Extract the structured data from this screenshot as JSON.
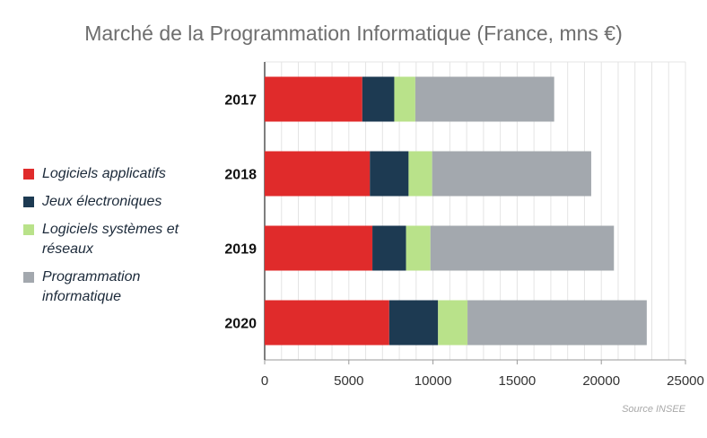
{
  "chart_data": {
    "type": "bar",
    "orientation": "horizontal",
    "stacked": true,
    "title": "Marché de la Programmation Informatique (France, mns €)",
    "categories": [
      "2017",
      "2018",
      "2019",
      "2020"
    ],
    "series": [
      {
        "name": "Logiciels applicatifs",
        "color": "#e02b2b",
        "values": [
          5800,
          6250,
          6400,
          7400
        ]
      },
      {
        "name": "Jeux électroniques",
        "color": "#1d3a52",
        "values": [
          1900,
          2300,
          2000,
          2900
        ]
      },
      {
        "name": "Logiciels systèmes et réseaux",
        "color": "#b9e28a",
        "values": [
          1250,
          1400,
          1450,
          1750
        ]
      },
      {
        "name": "Programmation informatique",
        "color": "#a3a8ae",
        "values": [
          8250,
          9450,
          10900,
          10650
        ]
      }
    ],
    "xlim": [
      0,
      25000
    ],
    "xticks": [
      "0",
      "5000",
      "10000",
      "15000",
      "20000",
      "25000"
    ],
    "xlabel": "",
    "ylabel": "",
    "grid": true,
    "legend_position": "left",
    "source": "Source INSEE"
  }
}
